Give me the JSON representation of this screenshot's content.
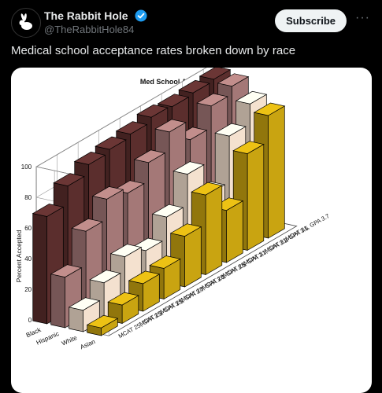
{
  "tweet": {
    "display_name": "The Rabbit Hole",
    "handle": "@TheRabbitHole84",
    "subscribe_label": "Subscribe",
    "more_label": "···",
    "text": "Medical school acceptance rates broken down by race"
  },
  "colors": {
    "background": "#000000",
    "verified": "#1d9bf0",
    "subscribe_bg": "#eff3f4",
    "muted": "#71767b"
  },
  "chart_data": {
    "type": "bar",
    "title": "Med School Acceptance Rates",
    "ylabel": "Percent Accepted",
    "ylim": [
      0,
      100
    ],
    "yticks": [
      0,
      20,
      40,
      60,
      80,
      100
    ],
    "grid": true,
    "categories": [
      "Black",
      "Hispanic",
      "White",
      "Asian"
    ],
    "series": [
      {
        "name": "MCAT 25, GPA 3.3",
        "values": [
          70,
          33,
          14,
          5
        ]
      },
      {
        "name": "MCAT 25, GPA 3.5",
        "values": [
          82,
          55,
          24,
          12
        ]
      },
      {
        "name": "MCAT 25, GPA 3.7",
        "values": [
          88,
          68,
          33,
          18
        ]
      },
      {
        "name": "MCAT 28, GPA 3.3",
        "values": [
          90,
          64,
          29,
          20
        ]
      },
      {
        "name": "MCAT 28, GPA 3.5",
        "values": [
          92,
          76,
          43,
          33
        ]
      },
      {
        "name": "MCAT 28, GPA 3.7",
        "values": [
          95,
          88,
          63,
          52
        ]
      },
      {
        "name": "MCAT 31, GPA 3.3",
        "values": [
          94,
          75,
          42,
          34
        ]
      },
      {
        "name": "MCAT 31, GPA 3.5",
        "values": [
          95,
          89,
          72,
          63
        ]
      },
      {
        "name": "MCAT 31, GPA 3.7",
        "values": [
          96,
          94,
          85,
          80
        ]
      }
    ],
    "palette": [
      "#5b2e2d",
      "#a47877",
      "#f4e1cf",
      "#c9a411"
    ]
  }
}
